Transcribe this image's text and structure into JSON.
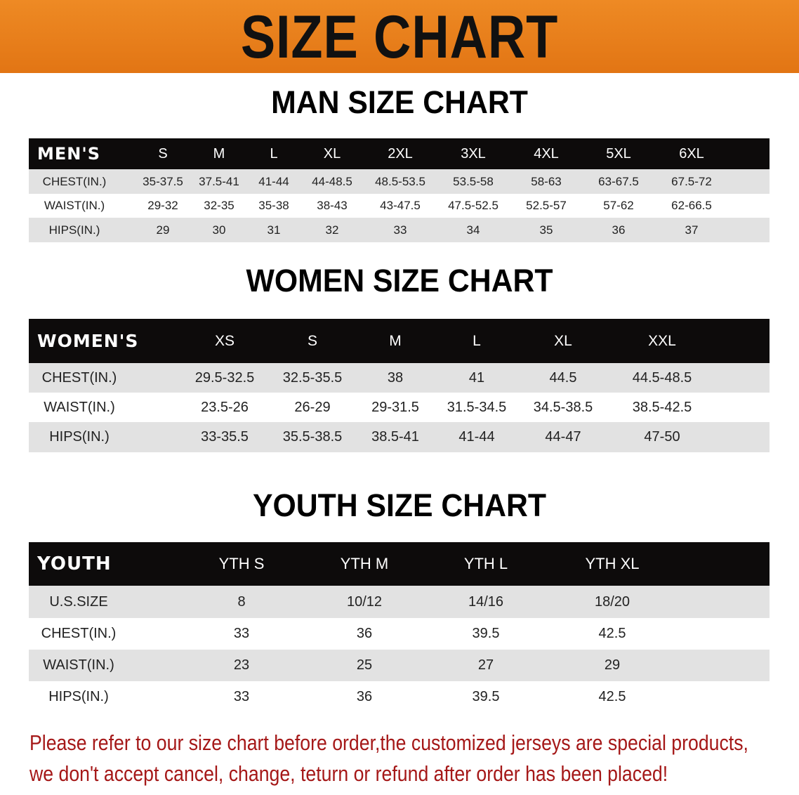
{
  "banner": {
    "title": "SIZE CHART",
    "color": "#e8821e"
  },
  "men": {
    "title": "MAN SIZE CHART",
    "header": [
      "MEN'S",
      "S",
      "M",
      "L",
      "XL",
      "2XL",
      "3XL",
      "4XL",
      "5XL",
      "6XL"
    ],
    "rows": [
      [
        "CHEST(IN.)",
        "35-37.5",
        "37.5-41",
        "41-44",
        "44-48.5",
        "48.5-53.5",
        "53.5-58",
        "58-63",
        "63-67.5",
        "67.5-72"
      ],
      [
        "WAIST(IN.)",
        "29-32",
        "32-35",
        "35-38",
        "38-43",
        "43-47.5",
        "47.5-52.5",
        "52.5-57",
        "57-62",
        "62-66.5"
      ],
      [
        "HIPS(IN.)",
        "29",
        "30",
        "31",
        "32",
        "33",
        "34",
        "35",
        "36",
        "37"
      ]
    ]
  },
  "women": {
    "title": "WOMEN SIZE CHART",
    "header": [
      "WOMEN'S",
      "XS",
      "S",
      "M",
      "L",
      "XL",
      "XXL"
    ],
    "rows": [
      [
        "CHEST(IN.)",
        "29.5-32.5",
        "32.5-35.5",
        "38",
        "41",
        "44.5",
        "44.5-48.5"
      ],
      [
        "WAIST(IN.)",
        "23.5-26",
        "26-29",
        "29-31.5",
        "31.5-34.5",
        "34.5-38.5",
        "38.5-42.5"
      ],
      [
        "HIPS(IN.)",
        "33-35.5",
        "35.5-38.5",
        "38.5-41",
        "41-44",
        "44-47",
        "47-50"
      ]
    ]
  },
  "youth": {
    "title": "YOUTH SIZE CHART",
    "header": [
      "YOUTH",
      "YTH S",
      "YTH M",
      "YTH L",
      "YTH XL"
    ],
    "rows": [
      [
        "U.S.SIZE",
        "8",
        "10/12",
        "14/16",
        "18/20"
      ],
      [
        "CHEST(IN.)",
        "33",
        "36",
        "39.5",
        "42.5"
      ],
      [
        "WAIST(IN.)",
        "23",
        "25",
        "27",
        "29"
      ],
      [
        "HIPS(IN.)",
        "33",
        "36",
        "39.5",
        "42.5"
      ]
    ]
  },
  "note": {
    "line1": "Please refer to our size chart before order,the customized jerseys are special products,",
    "line2": "we don't accept cancel, change, teturn or refund after order has been placed!",
    "color": "#a51818"
  }
}
